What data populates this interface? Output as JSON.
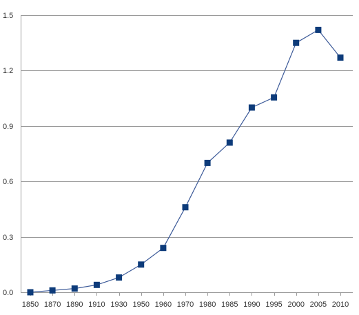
{
  "chart_data": {
    "type": "line",
    "title": "",
    "xlabel": "",
    "ylabel": "",
    "categories": [
      "1850",
      "1870",
      "1890",
      "1910",
      "1930",
      "1950",
      "1960",
      "1970",
      "1980",
      "1985",
      "1990",
      "1995",
      "2000",
      "2005",
      "2010"
    ],
    "series": [
      {
        "values": [
          0.0,
          0.01,
          0.02,
          0.04,
          0.08,
          0.15,
          0.24,
          0.46,
          0.7,
          0.81,
          1.0,
          1.055,
          1.35,
          1.42,
          1.27
        ]
      }
    ],
    "yticks": [
      "0.0",
      "0.3",
      "0.6",
      "0.9",
      "1.2",
      "1.5"
    ],
    "ylim": [
      0,
      1.5
    ],
    "grid": true,
    "legend": "none",
    "colors": {
      "line": "#3b5998",
      "marker": "#0d3b7a",
      "grid": "#9a9a9a",
      "text": "#333333"
    }
  }
}
